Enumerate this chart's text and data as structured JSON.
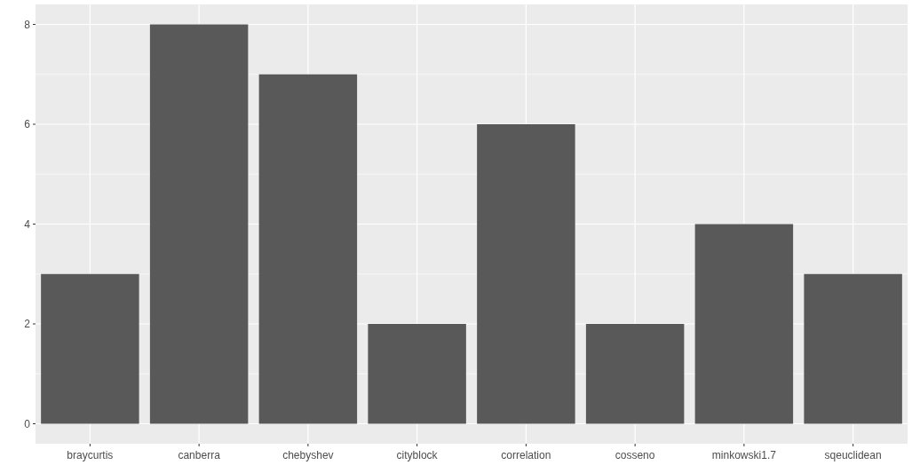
{
  "chart_data": {
    "type": "bar",
    "categories": [
      "braycurtis",
      "canberra",
      "chebyshev",
      "cityblock",
      "correlation",
      "cosseno",
      "minkowski1.7",
      "sqeuclidean"
    ],
    "values": [
      3,
      8,
      7,
      2,
      6,
      2,
      4,
      3
    ],
    "color": "#595959",
    "ylim": [
      -0.4,
      8.4
    ],
    "yticks": [
      0,
      2,
      4,
      6,
      8
    ],
    "grid": true
  }
}
